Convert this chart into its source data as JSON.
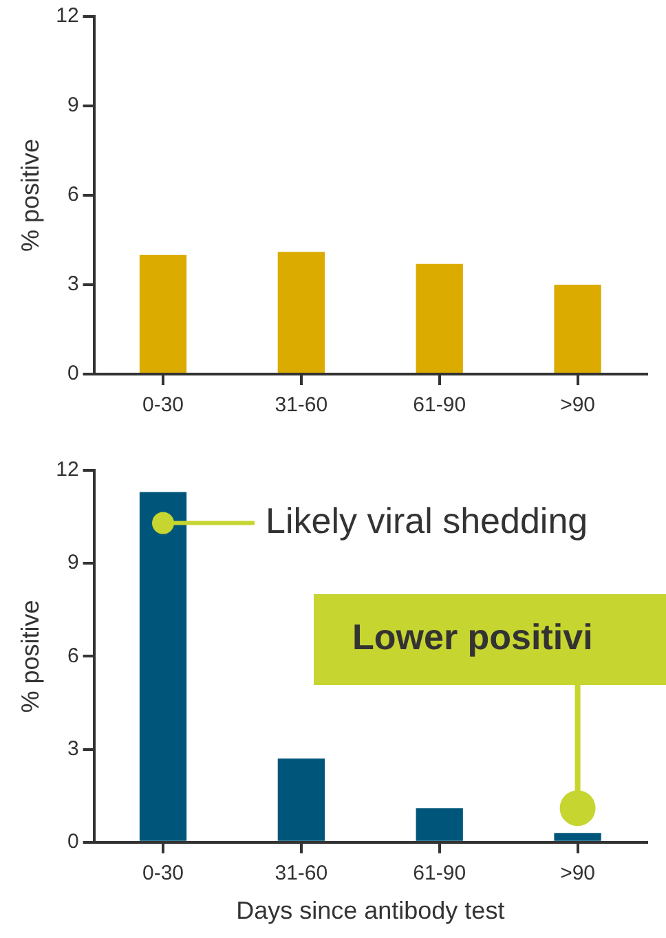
{
  "chart_data": [
    {
      "type": "bar",
      "ylabel": "% positive",
      "categories": [
        "0-30",
        "31-60",
        "61-90",
        ">90"
      ],
      "values": [
        4.0,
        4.1,
        3.7,
        3.0
      ],
      "color": "#dbab00",
      "ylim": [
        0,
        12
      ],
      "yticks": [
        0,
        3,
        6,
        9,
        12
      ],
      "grid": false,
      "legend": false
    },
    {
      "type": "bar",
      "xlabel": "Days since antibody test",
      "ylabel": "% positive",
      "categories": [
        "0-30",
        "31-60",
        "61-90",
        ">90"
      ],
      "values": [
        11.3,
        2.7,
        1.1,
        0.3
      ],
      "color": "#00567a",
      "ylim": [
        0,
        12
      ],
      "yticks": [
        0,
        3,
        6,
        9,
        12
      ],
      "grid": false,
      "legend": false,
      "annotations": [
        {
          "text": "Likely viral shedding",
          "x": "0-30",
          "y": 10.3
        },
        {
          "text": "Lower positivi",
          "x": ">90",
          "y": 1.1
        }
      ]
    }
  ]
}
